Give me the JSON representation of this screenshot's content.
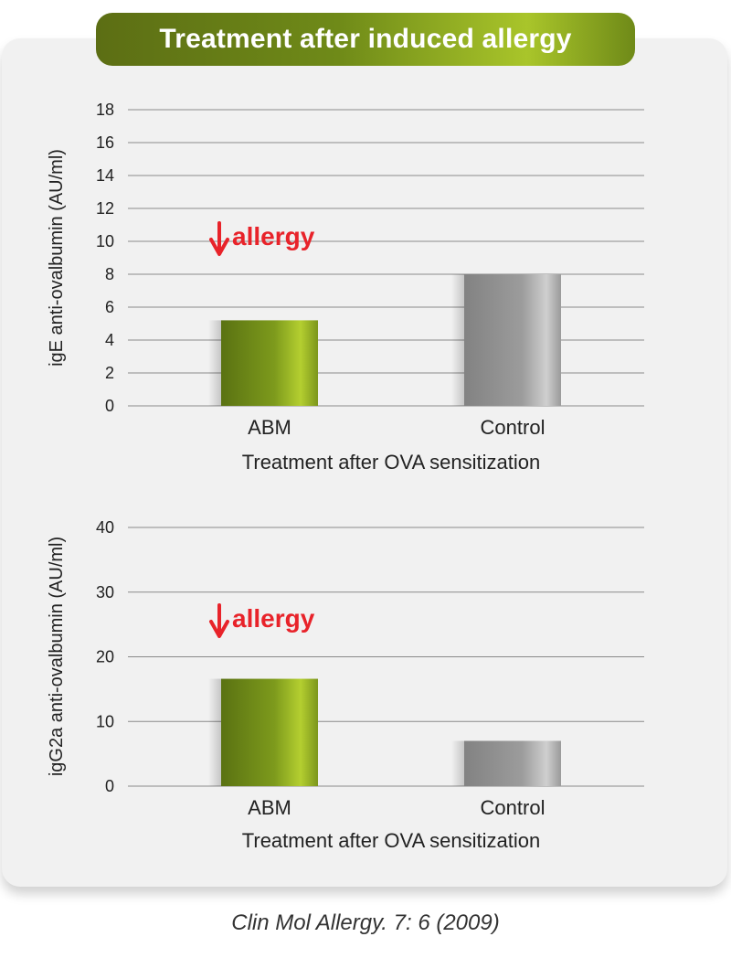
{
  "title": "Treatment after induced allergy",
  "source": "Clin Mol Allergy. 7: 6 (2009)",
  "colors": {
    "abm_green": "#6b8a18",
    "control_gray": "#9a9a9a",
    "annotation_red": "#e8232a"
  },
  "chart_data": [
    {
      "type": "bar",
      "categories": [
        "ABM",
        "Control"
      ],
      "values": [
        5.2,
        8
      ],
      "ylabel": "igE anti-ovalbumin (AU/ml)",
      "xlabel": "Treatment after OVA sensitization",
      "ylim": [
        0,
        18
      ],
      "yticks": [
        0,
        2,
        4,
        6,
        8,
        10,
        12,
        14,
        16,
        18
      ],
      "grid": true,
      "annotation": {
        "text": "allergy",
        "icon": "down-arrow-icon",
        "category": "ABM"
      }
    },
    {
      "type": "bar",
      "categories": [
        "ABM",
        "Control"
      ],
      "values": [
        16.6,
        7
      ],
      "ylabel": "igG2a anti-ovalbumin (AU/ml)",
      "xlabel": "Treatment after OVA sensitization",
      "ylim": [
        0,
        40
      ],
      "yticks": [
        0,
        10,
        20,
        30,
        40
      ],
      "grid": true,
      "annotation": {
        "text": "allergy",
        "icon": "down-arrow-icon",
        "category": "ABM"
      }
    }
  ]
}
